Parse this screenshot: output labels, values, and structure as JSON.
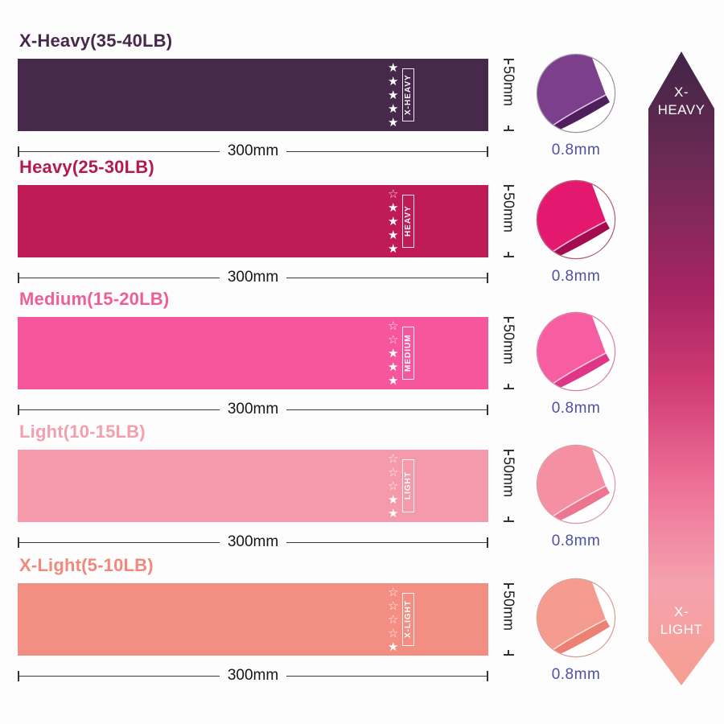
{
  "dimensions": {
    "width_label": "300mm",
    "height_label": "50mm",
    "thickness_label": "0.8mm"
  },
  "icons": {
    "star_filled_glyph": "★",
    "star_outline_glyph": "☆"
  },
  "products": [
    {
      "title": "X-Heavy(35-40LB)",
      "band_label": "X-HEAVY",
      "stars_filled": 5,
      "stars_total": 5,
      "band_color": "#46294b",
      "title_color": "#46294b",
      "circle": {
        "face": "#7d3e8b",
        "edge": "#4f1f5c",
        "shine": "#e3c2ea",
        "ring": "#9b8fa0"
      }
    },
    {
      "title": "Heavy(25-30LB)",
      "band_label": "HEAVY",
      "stars_filled": 4,
      "stars_total": 5,
      "band_color": "#bf1b56",
      "title_color": "#b31a50",
      "circle": {
        "face": "#e5186f",
        "edge": "#a30c4e",
        "shine": "#f9b9d4",
        "ring": "#b25a6e"
      }
    },
    {
      "title": "Medium(15-20LB)",
      "band_label": "MEDIUM",
      "stars_filled": 3,
      "stars_total": 5,
      "band_color": "#f6569c",
      "title_color": "#ee5f97",
      "circle": {
        "face": "#f75da1",
        "edge": "#e03687",
        "shine": "#fcc6de",
        "ring": "#d27fa5"
      }
    },
    {
      "title": "Light(10-15LB)",
      "band_label": "LIGHT",
      "stars_filled": 2,
      "stars_total": 5,
      "band_color": "#f59aaa",
      "title_color": "#f2a0ad",
      "circle": {
        "face": "#f58fa2",
        "edge": "#ec7590",
        "shine": "#fdd9df",
        "ring": "#d895a0"
      }
    },
    {
      "title": "X-Light(5-10LB)",
      "band_label": "X-LIGHT",
      "stars_filled": 1,
      "stars_total": 5,
      "band_color": "#f28f82",
      "title_color": "#f0897c",
      "circle": {
        "face": "#f49a8e",
        "edge": "#ec8073",
        "shine": "#fddcd4",
        "ring": "#d89a92"
      }
    }
  ],
  "scale_arrow": {
    "top_label_line1": "X-",
    "top_label_line2": "HEAVY",
    "bottom_label_line1": "X-",
    "bottom_label_line2": "LIGHT",
    "gradient": [
      "#402546 0%",
      "#6d2a54 18%",
      "#a82462 38%",
      "#cf3a72 52%",
      "#ee6f97 68%",
      "#f5a2ae 84%",
      "#f79e90 100%"
    ]
  }
}
